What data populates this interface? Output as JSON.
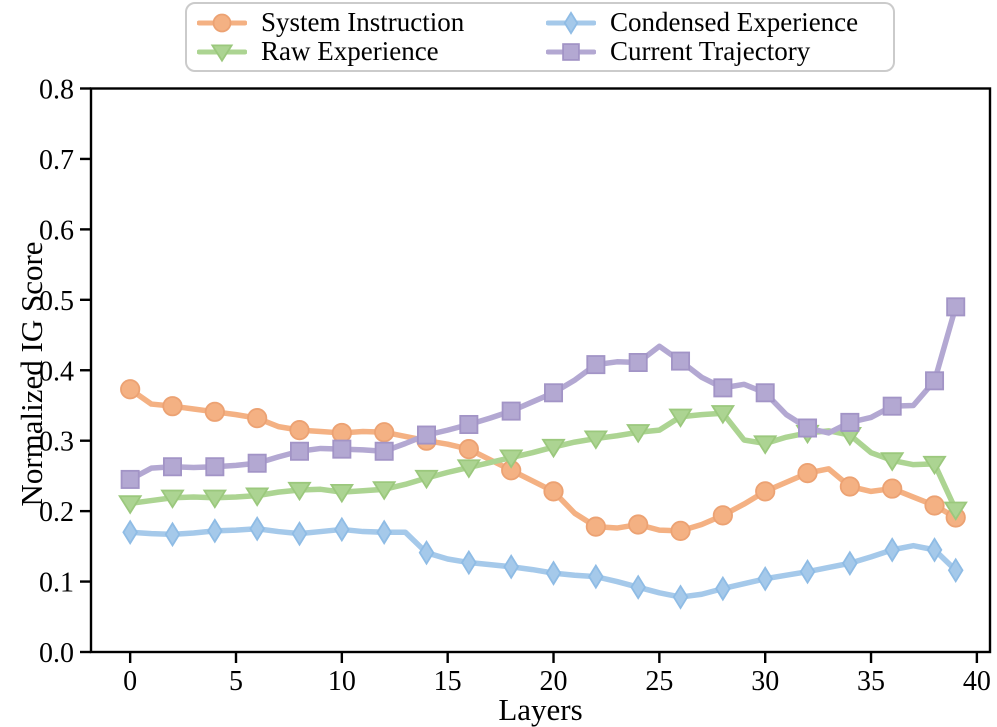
{
  "chart_data": {
    "type": "line",
    "title": "",
    "xlabel": "Layers",
    "ylabel": "Normalized IG Score",
    "x_ticks": [
      0,
      5,
      10,
      15,
      20,
      25,
      30,
      35,
      40
    ],
    "y_ticks": [
      "0.0",
      "0.1",
      "0.2",
      "0.3",
      "0.4",
      "0.5",
      "0.6",
      "0.7",
      "0.8"
    ],
    "xlim": [
      -1.85,
      40.62
    ],
    "ylim": [
      0.0,
      0.8
    ],
    "grid": false,
    "legend_position": "top-center",
    "legend_columns": 2,
    "marker_every": 2,
    "mark_last_point": true,
    "x": [
      0,
      1,
      2,
      3,
      4,
      5,
      6,
      7,
      8,
      9,
      10,
      11,
      12,
      13,
      14,
      15,
      16,
      17,
      18,
      19,
      20,
      21,
      22,
      23,
      24,
      25,
      26,
      27,
      28,
      29,
      30,
      31,
      32,
      33,
      34,
      35,
      36,
      37,
      38,
      39
    ],
    "series": [
      {
        "name": "System Instruction",
        "marker": "circle",
        "color": "#f4b183",
        "edge_color": "#eca273",
        "values": [
          0.373,
          0.352,
          0.349,
          0.345,
          0.341,
          0.337,
          0.332,
          0.32,
          0.315,
          0.313,
          0.311,
          0.313,
          0.312,
          0.306,
          0.3,
          0.295,
          0.288,
          0.273,
          0.258,
          0.243,
          0.228,
          0.197,
          0.178,
          0.176,
          0.181,
          0.173,
          0.172,
          0.181,
          0.194,
          0.21,
          0.228,
          0.241,
          0.254,
          0.26,
          0.235,
          0.228,
          0.232,
          0.22,
          0.208,
          0.191
        ]
      },
      {
        "name": "Raw Experience",
        "marker": "triangle-down",
        "color": "#acd492",
        "edge_color": "#9bc87d",
        "values": [
          0.211,
          0.215,
          0.219,
          0.22,
          0.219,
          0.22,
          0.222,
          0.227,
          0.23,
          0.231,
          0.227,
          0.229,
          0.231,
          0.238,
          0.247,
          0.255,
          0.262,
          0.269,
          0.276,
          0.283,
          0.291,
          0.298,
          0.303,
          0.307,
          0.312,
          0.315,
          0.334,
          0.337,
          0.339,
          0.301,
          0.296,
          0.305,
          0.311,
          0.314,
          0.308,
          0.283,
          0.272,
          0.266,
          0.267,
          0.202
        ]
      },
      {
        "name": "Condensed Experience",
        "marker": "thin-diamond",
        "color": "#a5c9ea",
        "edge_color": "#8fbce5",
        "values": [
          0.17,
          0.168,
          0.167,
          0.169,
          0.172,
          0.173,
          0.175,
          0.171,
          0.168,
          0.171,
          0.174,
          0.171,
          0.17,
          0.17,
          0.141,
          0.132,
          0.127,
          0.124,
          0.121,
          0.117,
          0.112,
          0.109,
          0.107,
          0.1,
          0.092,
          0.084,
          0.078,
          0.082,
          0.09,
          0.097,
          0.104,
          0.109,
          0.114,
          0.12,
          0.126,
          0.135,
          0.145,
          0.151,
          0.145,
          0.116
        ]
      },
      {
        "name": "Current Trajectory",
        "marker": "square",
        "color": "#b3a8d2",
        "edge_color": "#a294c6",
        "values": [
          0.245,
          0.261,
          0.263,
          0.262,
          0.263,
          0.265,
          0.268,
          0.277,
          0.285,
          0.289,
          0.288,
          0.287,
          0.285,
          0.296,
          0.308,
          0.315,
          0.323,
          0.332,
          0.342,
          0.355,
          0.368,
          0.386,
          0.408,
          0.412,
          0.411,
          0.434,
          0.413,
          0.39,
          0.375,
          0.38,
          0.368,
          0.337,
          0.318,
          0.311,
          0.326,
          0.333,
          0.349,
          0.35,
          0.385,
          0.49
        ]
      }
    ]
  }
}
